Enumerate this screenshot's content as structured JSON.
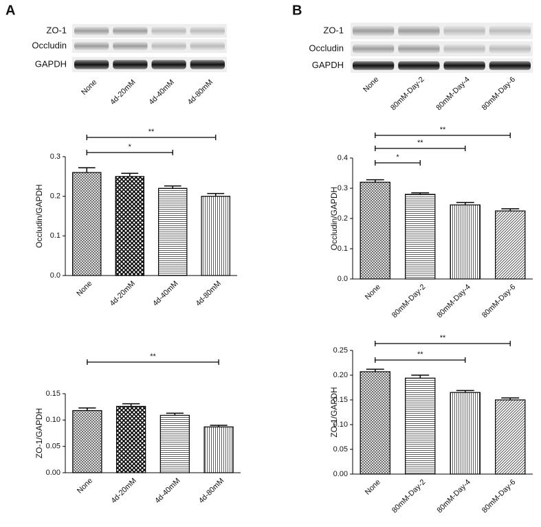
{
  "panels": [
    {
      "label": "A",
      "blot_rows": [
        "ZO-1",
        "Occludin",
        "GAPDH"
      ],
      "lanes": [
        "None",
        "4d-20mM",
        "4d-40mM",
        "4d-80mM"
      ]
    },
    {
      "label": "B",
      "blot_rows": [
        "ZO-1",
        "Occludin",
        "GAPDH"
      ],
      "lanes": [
        "None",
        "80mM-Day-2",
        "80mM-Day-4",
        "80mM-Day-6"
      ]
    }
  ],
  "chart_data": [
    {
      "type": "bar",
      "ylabel": "Occludin/GAPDH",
      "categories": [
        "None",
        "4d-20mM",
        "4d-40mM",
        "4d-80mM"
      ],
      "values": [
        0.26,
        0.25,
        0.22,
        0.2
      ],
      "errors": [
        0.012,
        0.008,
        0.006,
        0.007
      ],
      "ylim": [
        0,
        0.3
      ],
      "yticks": [
        {
          "value": 0,
          "label": "0.0"
        },
        0.1,
        0.2,
        0.3
      ],
      "hatches": [
        "cross",
        "check",
        "horizontal",
        "vertical"
      ],
      "color": "#000000",
      "significance": [
        {
          "from": 0,
          "to": 2,
          "label": "*"
        },
        {
          "from": 0,
          "to": 3,
          "label": "**"
        }
      ]
    },
    {
      "type": "bar",
      "ylabel": "ZO-1/GAPDH",
      "categories": [
        "None",
        "4d-20mM",
        "4d-40mM",
        "4d-80mM"
      ],
      "values": [
        0.118,
        0.126,
        0.109,
        0.087
      ],
      "errors": [
        0.005,
        0.005,
        0.004,
        0.003
      ],
      "ylim": [
        0,
        0.15
      ],
      "yticks": [
        {
          "value": 0,
          "label": "0.00"
        },
        0.05,
        {
          "value": 0.1,
          "label": "0.10"
        },
        0.15
      ],
      "hatches": [
        "cross",
        "check",
        "horizontal",
        "vertical"
      ],
      "color": "#000000",
      "significance": [
        {
          "from": 0,
          "to": 3,
          "label": "**"
        }
      ]
    },
    {
      "type": "bar",
      "ylabel": "Occludin/GAPDH",
      "categories": [
        "None",
        "80mM-Day-2",
        "80mM-Day-4",
        "80mM-Day-6"
      ],
      "values": [
        0.32,
        0.28,
        0.245,
        0.225
      ],
      "errors": [
        0.008,
        0.005,
        0.008,
        0.007
      ],
      "ylim": [
        0,
        0.4
      ],
      "yticks": [
        {
          "value": 0,
          "label": "0.0"
        },
        0.1,
        0.2,
        0.3,
        0.4
      ],
      "hatches": [
        "cross",
        "horizontal",
        "vertical",
        "diagonal"
      ],
      "color": "#000000",
      "significance": [
        {
          "from": 0,
          "to": 1,
          "label": "*"
        },
        {
          "from": 0,
          "to": 2,
          "label": "**"
        },
        {
          "from": 0,
          "to": 3,
          "label": "**"
        }
      ]
    },
    {
      "type": "bar",
      "ylabel": "ZO-1/GAPDH",
      "categories": [
        "None",
        "80mM-Day-2",
        "80mM-Day-4",
        "80mM-Day-6"
      ],
      "values": [
        0.207,
        0.194,
        0.165,
        0.15
      ],
      "errors": [
        0.005,
        0.006,
        0.004,
        0.004
      ],
      "ylim": [
        0,
        0.25
      ],
      "yticks": [
        {
          "value": 0,
          "label": "0.00"
        },
        0.05,
        {
          "value": 0.1,
          "label": "0.10"
        },
        0.15,
        {
          "value": 0.2,
          "label": "0.20"
        },
        0.25
      ],
      "hatches": [
        "cross",
        "horizontal",
        "vertical",
        "diagonal"
      ],
      "color": "#000000",
      "significance": [
        {
          "from": 0,
          "to": 2,
          "label": "**"
        },
        {
          "from": 0,
          "to": 3,
          "label": "**"
        }
      ]
    }
  ]
}
